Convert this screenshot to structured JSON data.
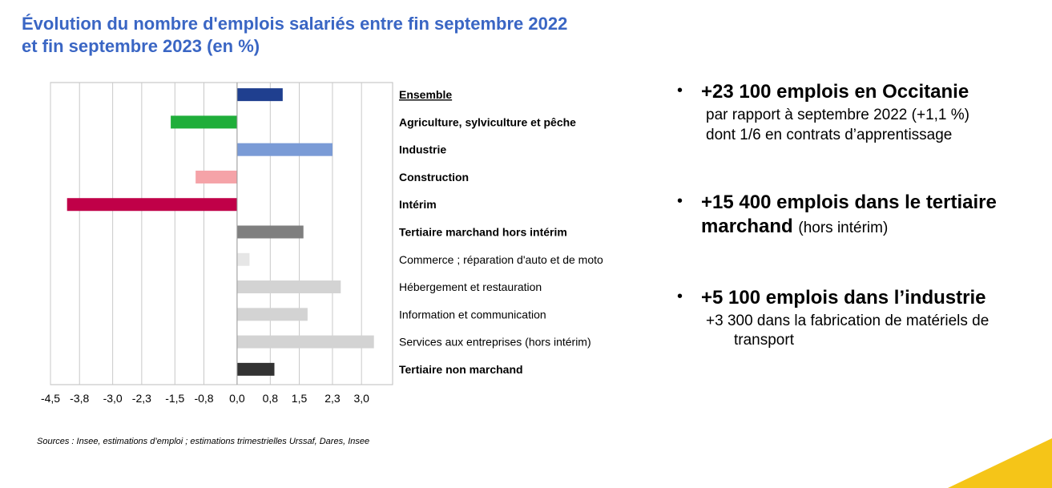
{
  "title_line1": "Évolution du nombre d'emplois salariés entre fin septembre 2022",
  "title_line2": "et fin septembre 2023 (en %)",
  "source": "Sources : Insee, estimations d’emploi ; estimations trimestrielles Urssaf, Dares, Insee",
  "bullets": [
    {
      "head": "+23 100 emplois en Occitanie",
      "lines": [
        "par rapport à septembre 2022 (+1,1 %)",
        "dont 1/6 en contrats d’apprentissage"
      ]
    },
    {
      "head_line1": "+15 400 emplois dans le tertiaire",
      "head_line2": "marchand",
      "note": "(hors intérim)"
    },
    {
      "head": "+5 100 emplois dans l’industrie",
      "lines": [
        "+3 300 dans la fabrication de matériels de",
        "transport"
      ]
    }
  ],
  "accent_color": "#f5c518",
  "chart_data": {
    "type": "bar",
    "orientation": "horizontal",
    "categories": [
      "Ensemble",
      "Agriculture, sylviculture et pêche",
      "Industrie",
      "Construction",
      "Intérim",
      "Tertiaire marchand hors intérim",
      "Commerce ; réparation d'auto et de moto",
      "Hébergement et restauration",
      "Information et communication",
      "Services aux entreprises (hors intérim)",
      "Tertiaire non marchand"
    ],
    "values": [
      1.1,
      -1.6,
      2.3,
      -1.0,
      -4.1,
      1.6,
      0.3,
      2.5,
      1.7,
      3.3,
      0.9
    ],
    "colors": [
      "#1f3f8f",
      "#1fae3a",
      "#7a9bd6",
      "#f5a3a8",
      "#c00048",
      "#7f7f7f",
      "#e6e6e6",
      "#d3d3d3",
      "#d3d3d3",
      "#d3d3d3",
      "#333333"
    ],
    "bold": [
      true,
      true,
      true,
      true,
      true,
      true,
      false,
      false,
      false,
      false,
      true
    ],
    "underline": [
      true,
      false,
      false,
      false,
      false,
      false,
      false,
      false,
      false,
      false,
      false
    ],
    "x_ticks": [
      "-4,5",
      "-3,8",
      "-3,0",
      "-2,3",
      "-1,5",
      "-0,8",
      "0,0",
      "0,8",
      "1,5",
      "2,3",
      "3,0"
    ],
    "xlim": [
      -4.5,
      3.75
    ],
    "grid": true
  }
}
